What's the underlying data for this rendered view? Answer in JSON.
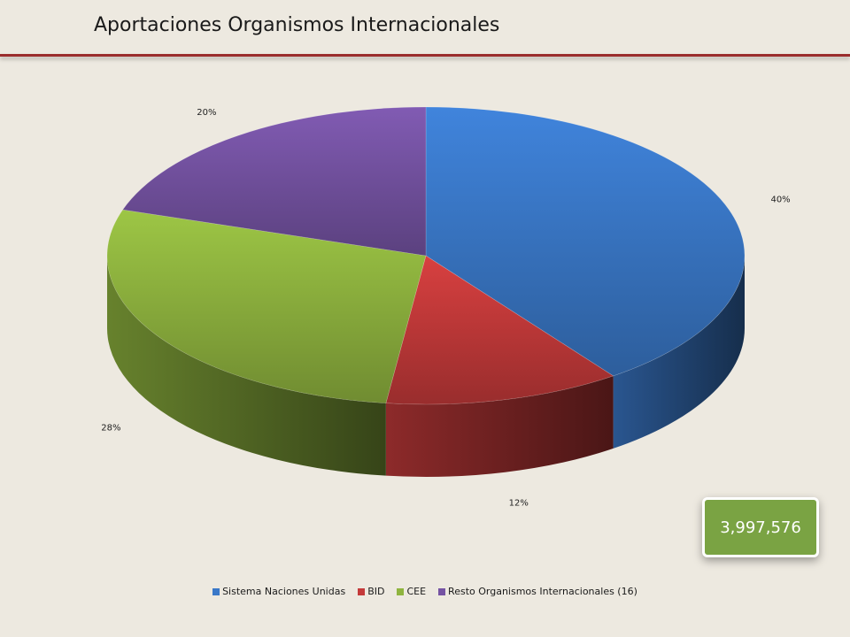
{
  "page": {
    "title": "Aportaciones Organismos Internacionales",
    "total_value": "3,997,576",
    "accent_rule_color": "#9b2d2d",
    "background_color": "#ede9e0",
    "badge_color": "#7aa343"
  },
  "chart_data": {
    "type": "pie",
    "style": "3d",
    "title": "",
    "legend_position": "bottom",
    "slices": [
      {
        "name": "Sistema Naciones Unidas",
        "value": 40,
        "label": "40%",
        "color": "#3a78c8"
      },
      {
        "name": "BID",
        "value": 12,
        "label": "12%",
        "color": "#c43a3a"
      },
      {
        "name": "CEE",
        "value": 28,
        "label": "28%",
        "color": "#8fb43f"
      },
      {
        "name": "Resto Organismos Internacionales (16)",
        "value": 20,
        "label": "20%",
        "color": "#7553a3"
      }
    ]
  }
}
